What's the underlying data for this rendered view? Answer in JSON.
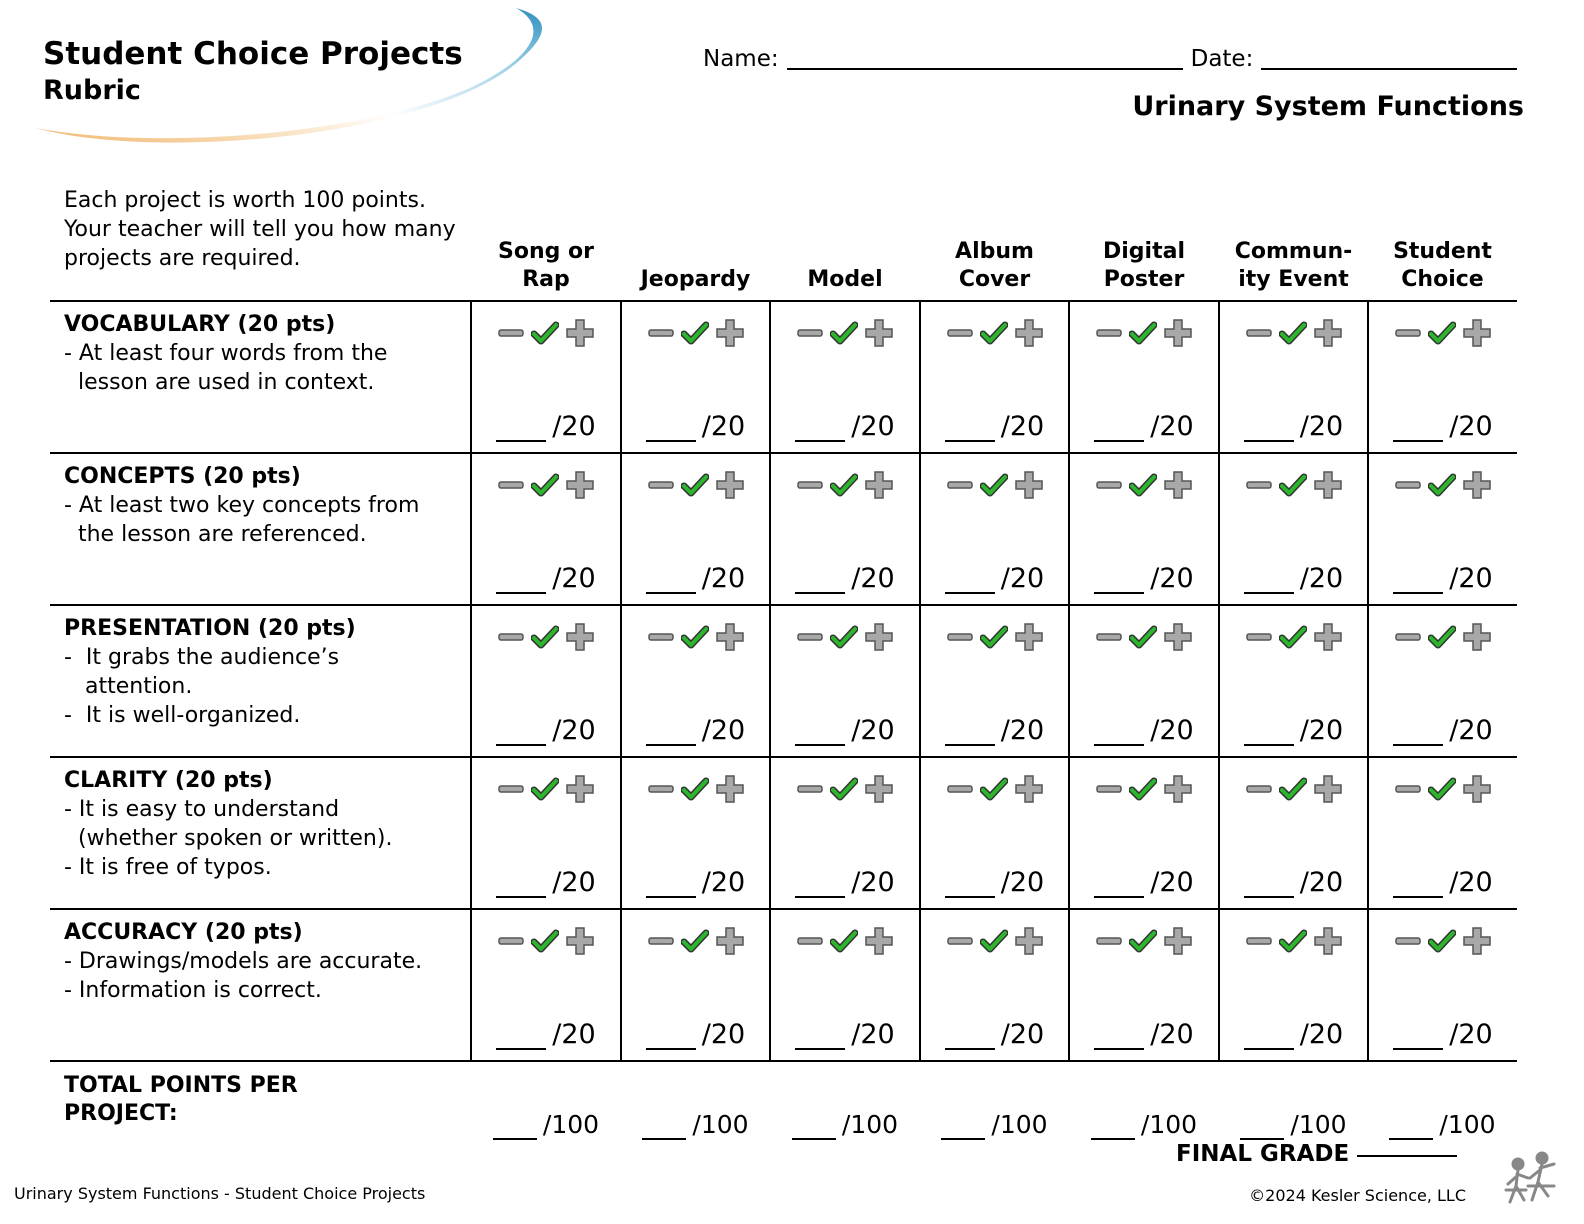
{
  "header": {
    "title": "Student Choice Projects",
    "subtitle": "Rubric",
    "name_label": "Name:",
    "date_label": "Date:",
    "topic": "Urinary System Functions"
  },
  "intro": "Each project is worth 100 points. Your teacher will tell you how many projects are required.",
  "projects": [
    {
      "line1": "Song or",
      "line2": "Rap"
    },
    {
      "line1": "",
      "line2": "Jeopardy"
    },
    {
      "line1": "",
      "line2": "Model"
    },
    {
      "line1": "Album",
      "line2": "Cover"
    },
    {
      "line1": "Digital",
      "line2": "Poster"
    },
    {
      "line1": "Commun-",
      "line2": "ity Event"
    },
    {
      "line1": "Student",
      "line2": "Choice"
    }
  ],
  "criteria": [
    {
      "title": "VOCABULARY (20 pts)",
      "lines": [
        "- At least four words from the",
        "  lesson are used in context."
      ],
      "max": "/20"
    },
    {
      "title": "CONCEPTS (20 pts)",
      "lines": [
        "- At least two key concepts from",
        "  the lesson are referenced."
      ],
      "max": "/20"
    },
    {
      "title": "PRESENTATION (20 pts)",
      "lines": [
        "-  It grabs the audience’s",
        "   attention.",
        "-  It is well-organized."
      ],
      "max": "/20"
    },
    {
      "title": "CLARITY (20 pts)",
      "lines": [
        "- It is easy to understand",
        "  (whether spoken or written).",
        "- It is free of typos."
      ],
      "max": "/20"
    },
    {
      "title": "ACCURACY (20 pts)",
      "lines": [
        "- Drawings/models are accurate.",
        "- Information is correct."
      ],
      "max": "/20"
    }
  ],
  "total": {
    "line1": "TOTAL POINTS PER",
    "line2": "PROJECT:",
    "max": "/100"
  },
  "final_grade_label": "FINAL GRADE",
  "footer": {
    "left": "Urinary System Functions - Student Choice Projects",
    "right": "©2024  Kesler Science, LLC"
  },
  "icons": {
    "minus": "minus-icon",
    "check": "check-icon",
    "plus": "plus-icon",
    "logo": "students-logo-icon"
  },
  "colors": {
    "check": "#2db52d",
    "icon_gray": "#9a9a9a",
    "swoosh_blue": "#2e8fbf",
    "swoosh_orange": "#f0b66a"
  }
}
